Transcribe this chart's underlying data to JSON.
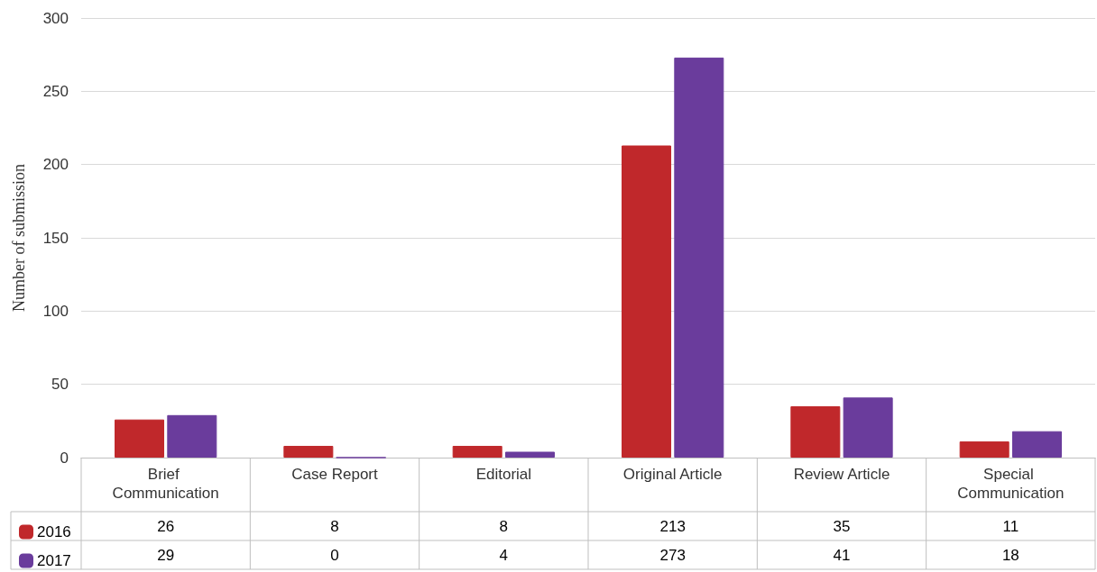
{
  "chart_data": {
    "type": "bar",
    "ylabel": "Number of submission",
    "categories": [
      "Brief Communication",
      "Case Report",
      "Editorial",
      "Original Article",
      "Review Article",
      "Special Communication"
    ],
    "series": [
      {
        "name": "2016",
        "color": "#c0282b",
        "values": [
          26,
          8,
          8,
          213,
          35,
          11
        ]
      },
      {
        "name": "2017",
        "color": "#6a3c9c",
        "values": [
          29,
          0,
          4,
          273,
          41,
          18
        ]
      }
    ],
    "ylim": [
      0,
      300
    ],
    "yticks": [
      0,
      50,
      100,
      150,
      200,
      250,
      300
    ],
    "grid": "y",
    "legend": "bottom left",
    "data_labels": true
  }
}
